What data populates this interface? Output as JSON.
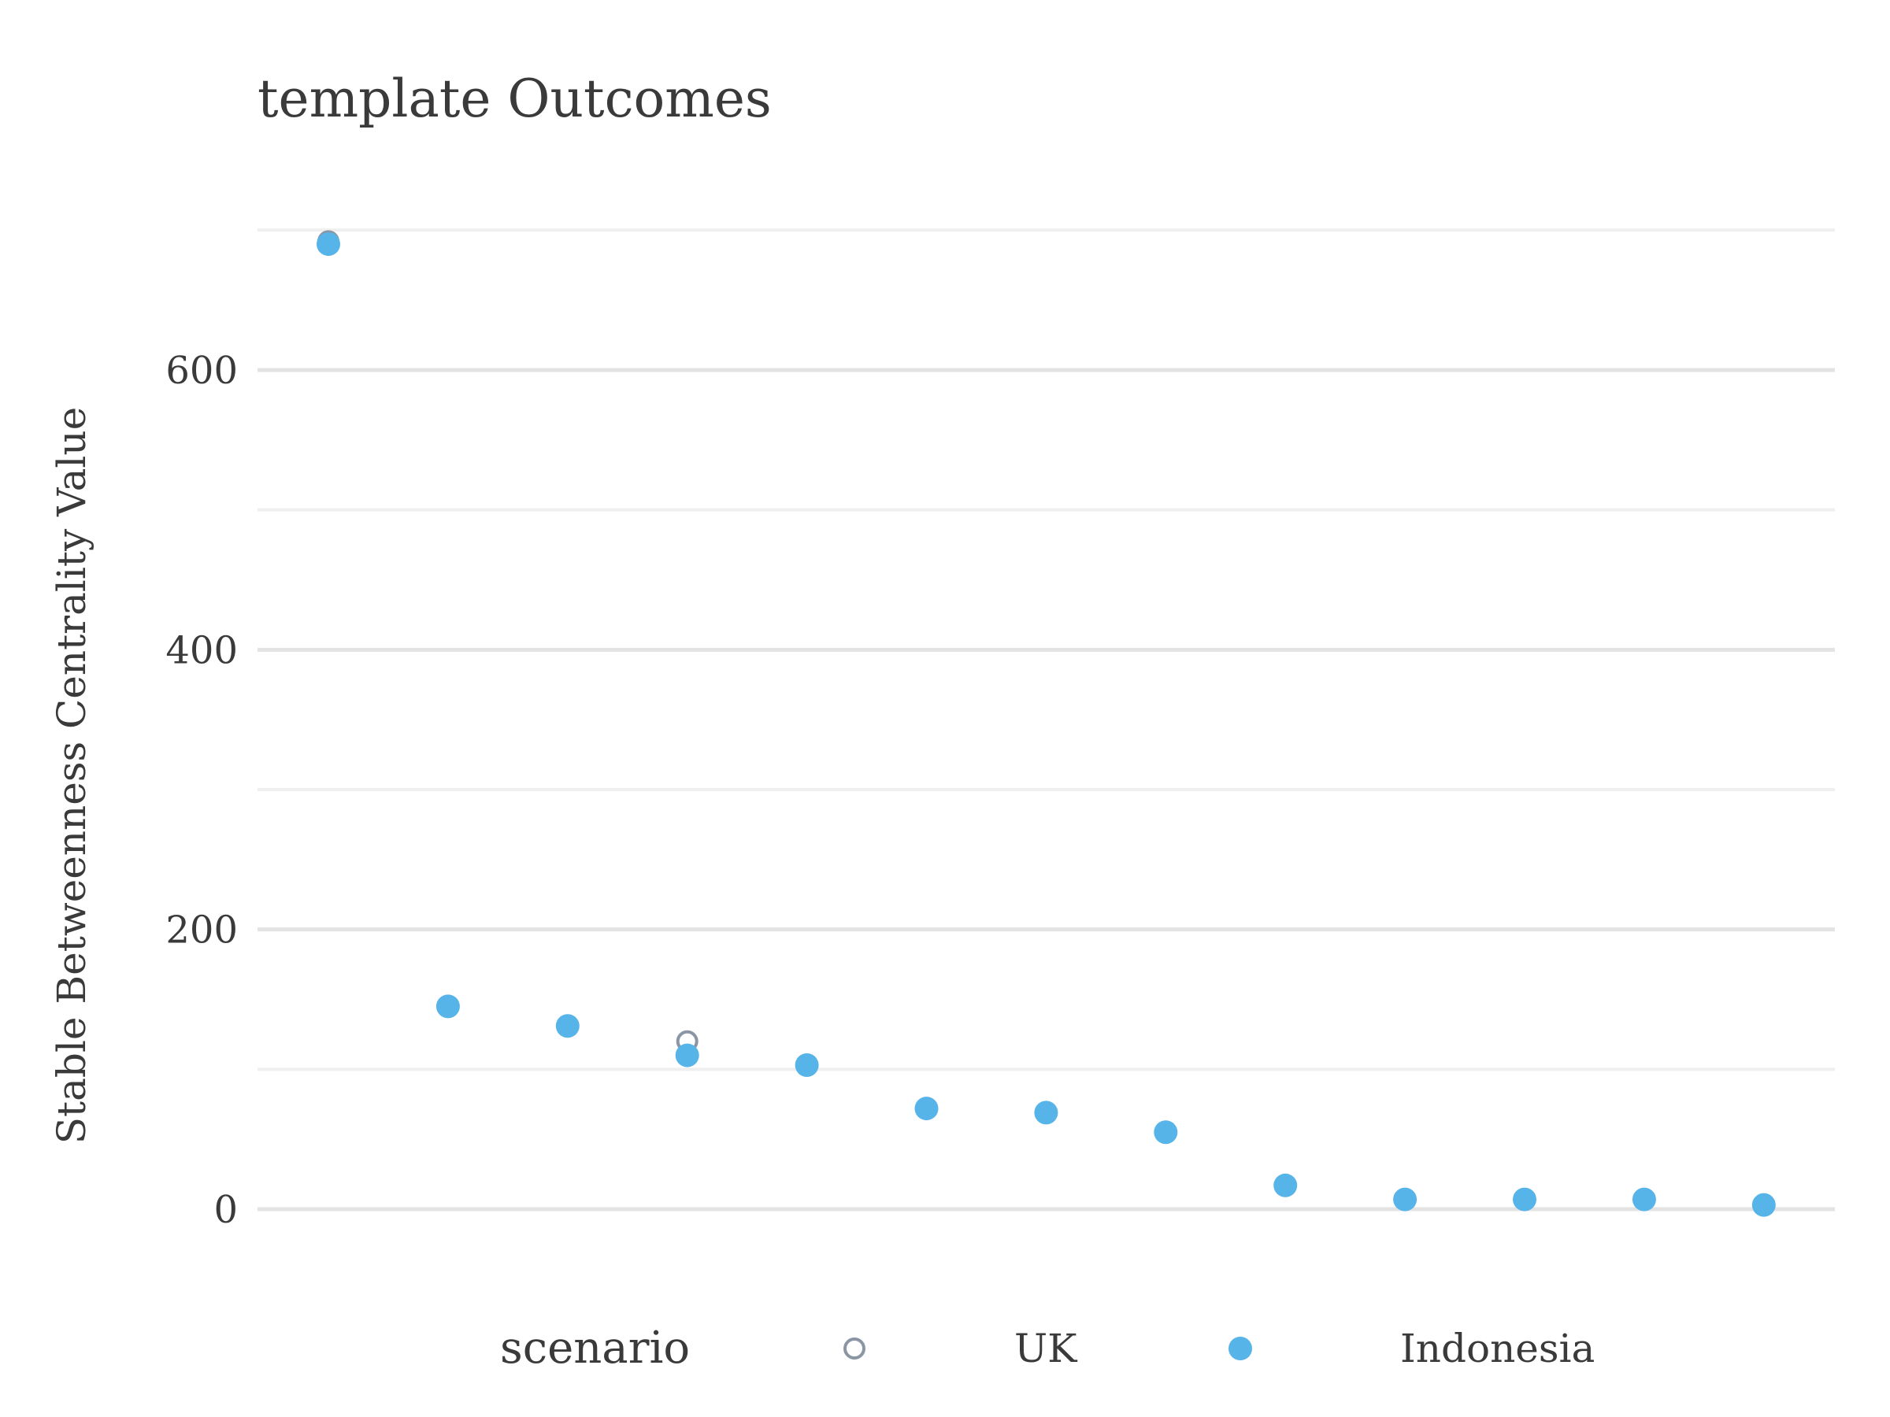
{
  "chart_data": {
    "type": "scatter",
    "title": "template Outcomes",
    "xlabel": "",
    "ylabel": "Stable Betweenness Centrality Value",
    "ylim": [
      -100,
      720
    ],
    "yticks": [
      0,
      200,
      400,
      600
    ],
    "x": [
      1,
      2,
      3,
      4,
      5,
      6,
      7,
      8,
      9,
      10,
      11,
      12,
      13
    ],
    "grid": true,
    "legend_position": "bottom",
    "legend_title": "scenario",
    "series": [
      {
        "name": "UK",
        "marker": "hollow-circle",
        "color": "#8a96a3",
        "values": [
          692,
          145,
          131,
          120,
          103,
          72,
          69,
          55,
          17,
          7,
          7,
          7,
          3
        ]
      },
      {
        "name": "Indonesia",
        "marker": "filled-circle",
        "color": "#56b4e9",
        "values": [
          690,
          145,
          131,
          110,
          103,
          72,
          69,
          55,
          17,
          7,
          7,
          7,
          3
        ]
      }
    ]
  }
}
